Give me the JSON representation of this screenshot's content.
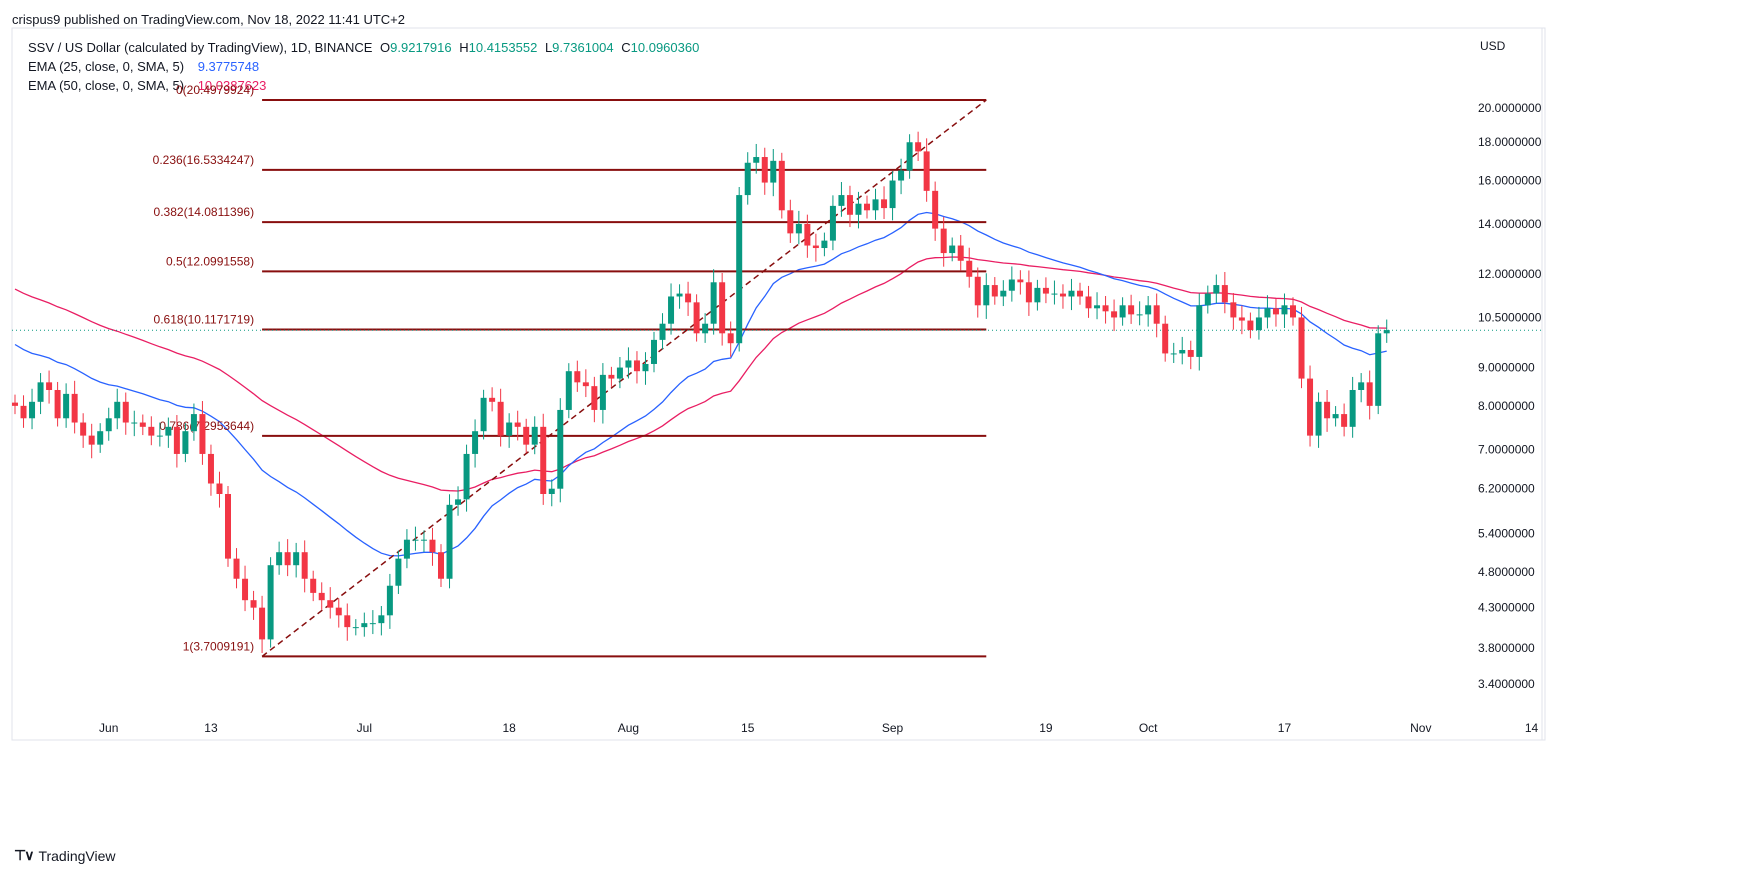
{
  "header": {
    "published": "crispus9 published on TradingView.com, Nov 18, 2022 11:41 UTC+2",
    "symbol": "SSV / US Dollar (calculated by TradingView), 1D, BINANCE",
    "o_label": "O",
    "o": "9.9217916",
    "h_label": "H",
    "h": "10.4153552",
    "l_label": "L",
    "l": "9.7361004",
    "c_label": "C",
    "c": "10.0960360",
    "ema25_label": "EMA (25, close, 0, SMA, 5)",
    "ema25_value": "9.3775748",
    "ema50_label": "EMA (50, close, 0, SMA, 5)",
    "ema50_value": "10.0387623"
  },
  "footer": {
    "brand": "TradingView"
  },
  "colors": {
    "up": "#089981",
    "down": "#f23645",
    "fib": "#880e0e",
    "ema25": "#2962ff",
    "ema50": "#e91e63",
    "axis": "#131722"
  },
  "chart_data": {
    "type": "candlestick",
    "currency": "USD",
    "scale": "log",
    "y_ticks": [
      "20.0000000",
      "18.0000000",
      "16.0000000",
      "14.0000000",
      "12.0000000",
      "10.5000000",
      "9.0000000",
      "8.0000000",
      "7.0000000",
      "6.2000000",
      "5.4000000",
      "4.8000000",
      "4.3000000",
      "3.8000000",
      "3.4000000"
    ],
    "x_ticks": [
      {
        "label": "Jun",
        "bar": 11
      },
      {
        "label": "13",
        "bar": 23
      },
      {
        "label": "Jul",
        "bar": 41
      },
      {
        "label": "18",
        "bar": 58
      },
      {
        "label": "Aug",
        "bar": 72
      },
      {
        "label": "15",
        "bar": 86
      },
      {
        "label": "Sep",
        "bar": 103
      },
      {
        "label": "19",
        "bar": 121
      },
      {
        "label": "Oct",
        "bar": 133
      },
      {
        "label": "17",
        "bar": 149
      },
      {
        "label": "Nov",
        "bar": 165
      },
      {
        "label": "14",
        "bar": 178
      }
    ],
    "last_price": 10.096,
    "fib_levels": [
      {
        "label": "0(20.4979924)",
        "value": 20.4979924
      },
      {
        "label": "0.236(16.5334247)",
        "value": 16.5334247
      },
      {
        "label": "0.382(14.0811396)",
        "value": 14.0811396
      },
      {
        "label": "0.5(12.0991558)",
        "value": 12.0991558
      },
      {
        "label": "0.618(10.1171719)",
        "value": 10.1171719
      },
      {
        "label": "0.786(7.2953644)",
        "value": 7.2953644
      },
      {
        "label": "1(3.7009191)",
        "value": 3.7009191
      }
    ],
    "fib_start_bar": 29,
    "fib_end_bar": 114,
    "closes": [
      8.0,
      7.7,
      8.1,
      8.6,
      8.4,
      7.7,
      8.3,
      7.6,
      7.3,
      7.1,
      7.4,
      7.7,
      8.1,
      7.6,
      7.6,
      7.5,
      7.3,
      7.3,
      7.5,
      6.9,
      7.4,
      7.8,
      6.9,
      6.3,
      6.1,
      5.0,
      4.7,
      4.4,
      4.3,
      3.9,
      4.9,
      5.1,
      4.9,
      5.1,
      4.7,
      4.5,
      4.4,
      4.3,
      4.2,
      4.05,
      4.05,
      4.1,
      4.1,
      4.2,
      4.6,
      5.0,
      5.3,
      5.3,
      5.3,
      5.1,
      4.7,
      5.9,
      6.0,
      6.9,
      7.4,
      8.2,
      8.1,
      7.3,
      7.6,
      7.5,
      7.1,
      7.5,
      6.1,
      6.2,
      7.9,
      8.9,
      8.6,
      8.5,
      7.9,
      8.8,
      8.7,
      9.0,
      9.2,
      8.9,
      9.1,
      9.8,
      10.3,
      11.2,
      11.3,
      11.0,
      10.0,
      10.3,
      11.7,
      10.0,
      9.7,
      15.3,
      16.9,
      17.2,
      15.9,
      17.0,
      14.6,
      13.6,
      14.0,
      13.1,
      13.0,
      13.3,
      14.8,
      15.3,
      14.4,
      14.9,
      14.6,
      15.1,
      14.7,
      16.0,
      16.5,
      18.0,
      17.5,
      15.5,
      13.8,
      12.8,
      13.1,
      12.5,
      11.9,
      10.9,
      11.6,
      11.2,
      11.4,
      11.8,
      11.7,
      11.0,
      11.5,
      11.3,
      11.3,
      11.2,
      11.4,
      11.2,
      10.8,
      10.9,
      10.7,
      10.5,
      10.9,
      10.6,
      10.6,
      10.9,
      10.3,
      9.4,
      9.4,
      9.5,
      9.3,
      10.9,
      11.3,
      11.6,
      11.0,
      10.5,
      10.4,
      10.1,
      10.5,
      10.8,
      10.6,
      10.9,
      10.5,
      8.7,
      7.3,
      8.1,
      7.7,
      7.8,
      7.5,
      8.4,
      8.6,
      8.0,
      10.0,
      10.1
    ]
  }
}
